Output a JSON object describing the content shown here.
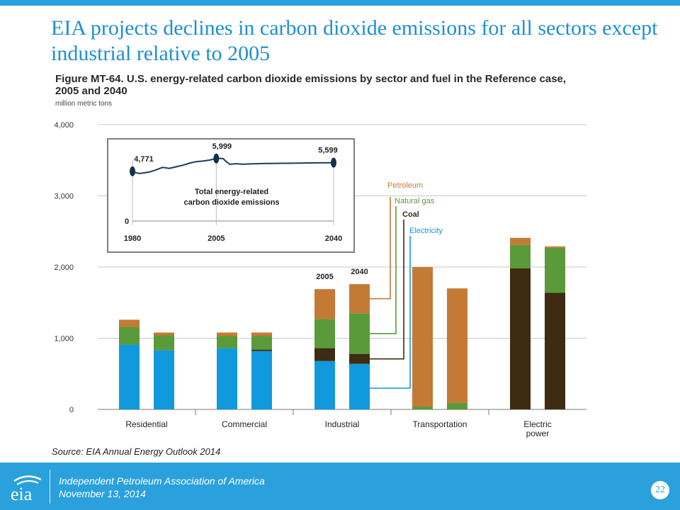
{
  "slide": {
    "title": "EIA projects declines in carbon dioxide emissions for all sectors except industrial relative to 2005",
    "source": "Source: EIA Annual Energy Outlook 2014"
  },
  "footer": {
    "org": "Independent Petroleum Association of America",
    "date": "November 13, 2014",
    "page_number": "22",
    "logo_text": "eia"
  },
  "colors": {
    "petroleum": "#c47a35",
    "natural_gas": "#5a9a3a",
    "coal": "#3d2b12",
    "electricity": "#1199dd",
    "accent": "#2aa1dc"
  },
  "chart_data": [
    {
      "type": "bar",
      "stacked": true,
      "title": "Figure MT-64. U.S. energy-related carbon dioxide emissions by sector and fuel in the Reference case, 2005 and 2040",
      "units": "million metric tons",
      "ylim": [
        0,
        4000
      ],
      "yticks": [
        "0",
        "1,000",
        "2,000",
        "3,000",
        "4,000"
      ],
      "grid": true,
      "categories": [
        "Residential",
        "Commercial",
        "Industrial",
        "Transportation",
        "Electric power"
      ],
      "bar_years": [
        "2005",
        "2040"
      ],
      "year_labels_shown_on": "Industrial",
      "series": [
        {
          "name": "Electricity",
          "values_2005": [
            910,
            860,
            680,
            0,
            0
          ],
          "values_2040": [
            830,
            820,
            640,
            0,
            0
          ]
        },
        {
          "name": "Coal",
          "values_2005": [
            0,
            0,
            180,
            0,
            1980
          ],
          "values_2040": [
            0,
            20,
            140,
            0,
            1640
          ]
        },
        {
          "name": "Natural gas",
          "values_2005": [
            250,
            170,
            410,
            40,
            330
          ],
          "values_2040": [
            210,
            190,
            570,
            90,
            630
          ]
        },
        {
          "name": "Petroleum",
          "values_2005": [
            100,
            50,
            420,
            1960,
            100
          ],
          "values_2040": [
            40,
            50,
            410,
            1610,
            20
          ]
        }
      ],
      "legend_order": [
        "Petroleum",
        "Natural gas",
        "Coal",
        "Electricity"
      ]
    },
    {
      "type": "line",
      "title": "Total energy-related carbon dioxide emissions",
      "xticks": [
        "1980",
        "2005",
        "2040"
      ],
      "yticks": [
        "0"
      ],
      "x": [
        1980,
        1981,
        1982,
        1983,
        1985,
        1987,
        1989,
        1991,
        1993,
        1995,
        1997,
        1999,
        2001,
        2003,
        2005,
        2007,
        2008,
        2009,
        2011,
        2013,
        2015,
        2020,
        2025,
        2030,
        2035,
        2040
      ],
      "y": [
        4771,
        4640,
        4560,
        4600,
        4700,
        4900,
        5150,
        5050,
        5200,
        5350,
        5550,
        5700,
        5750,
        5850,
        5999,
        6000,
        5700,
        5450,
        5500,
        5450,
        5480,
        5520,
        5540,
        5560,
        5580,
        5599
      ],
      "labeled_points": [
        {
          "x": 1980,
          "label": "4,771"
        },
        {
          "x": 2005,
          "label": "5,999"
        },
        {
          "x": 2040,
          "label": "5,599"
        }
      ]
    }
  ]
}
